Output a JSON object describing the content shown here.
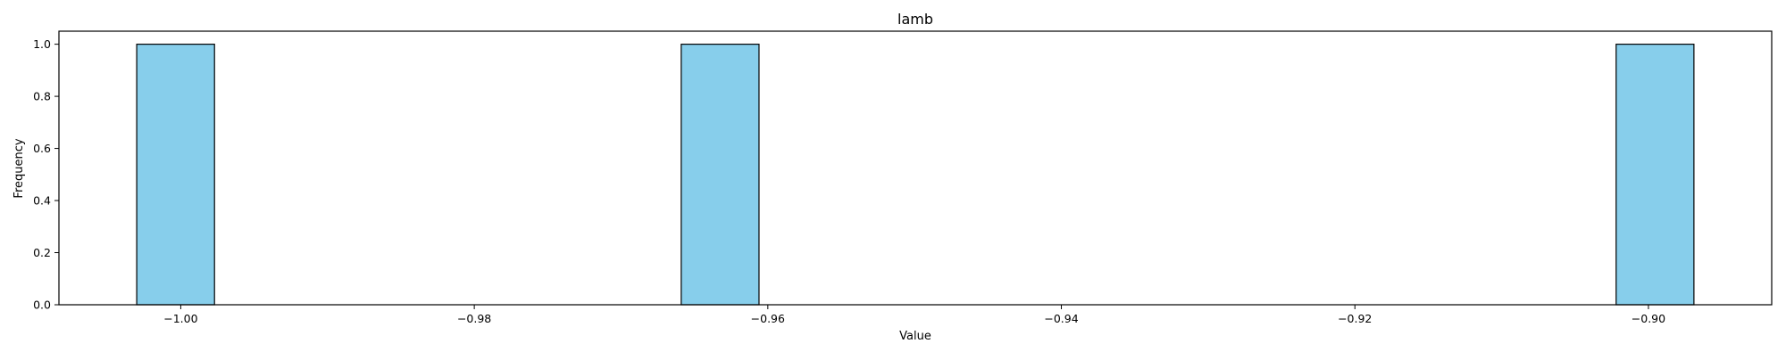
{
  "chart_data": {
    "type": "bar",
    "title": "lamb",
    "xlabel": "Value",
    "ylabel": "Frequency",
    "xlim": [
      -1.0083,
      -0.8916
    ],
    "ylim": [
      0,
      1.05
    ],
    "x_ticks": [
      -1.0,
      -0.98,
      -0.96,
      -0.94,
      -0.92,
      -0.9
    ],
    "x_tick_labels": [
      "−1.00",
      "−0.98",
      "−0.96",
      "−0.94",
      "−0.92",
      "−0.90"
    ],
    "y_ticks": [
      0.0,
      0.2,
      0.4,
      0.6,
      0.8,
      1.0
    ],
    "y_tick_labels": [
      "0.0",
      "0.2",
      "0.4",
      "0.6",
      "0.8",
      "1.0"
    ],
    "bins": [
      {
        "x0": -1.003,
        "x1": -0.9977,
        "value": 1
      },
      {
        "x0": -0.9659,
        "x1": -0.9606,
        "value": 1
      },
      {
        "x0": -0.9022,
        "x1": -0.8969,
        "value": 1
      }
    ],
    "grid": false,
    "legend": "none",
    "colors": {
      "bar_fill": "#87ceeb",
      "bar_edge": "#000000",
      "axis": "#000000"
    }
  }
}
